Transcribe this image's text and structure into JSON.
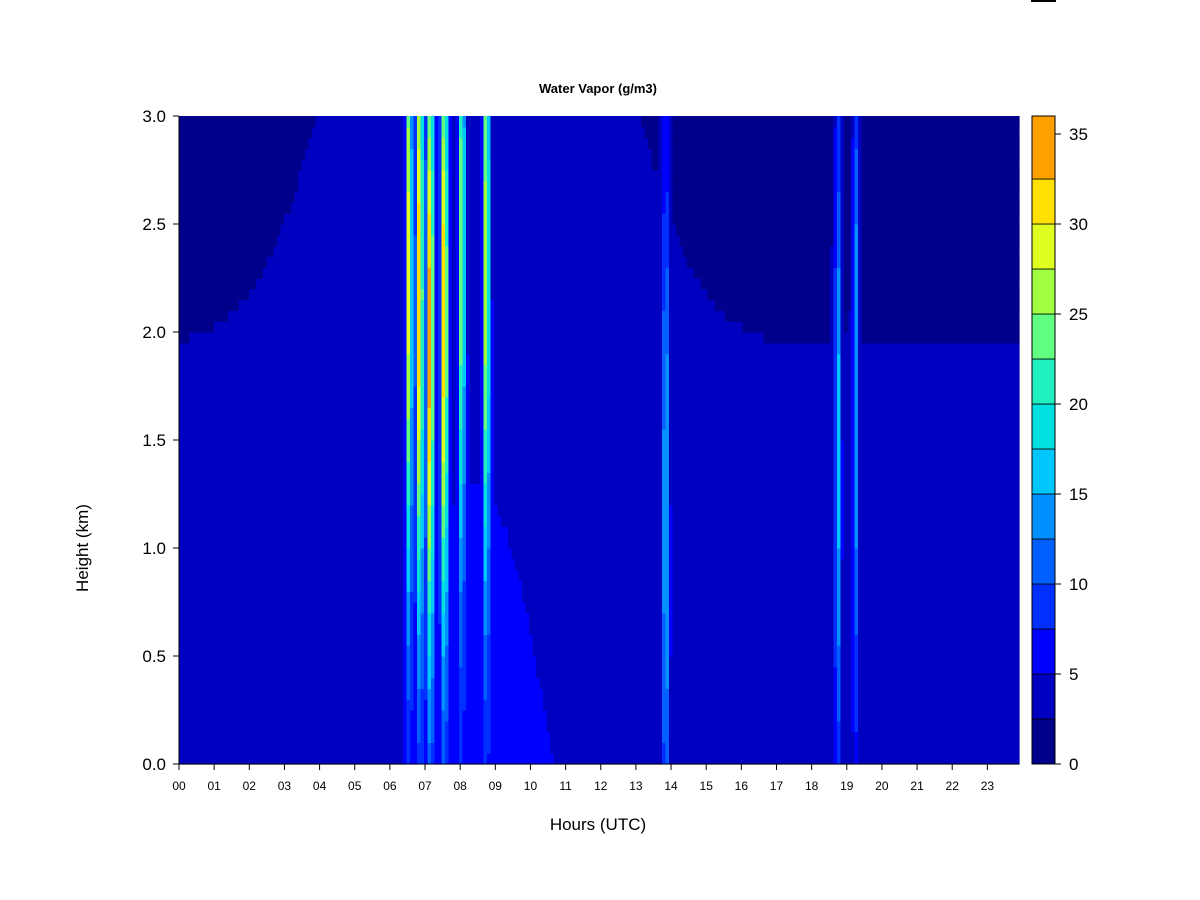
{
  "chart_data": {
    "type": "heatmap",
    "title": "Water Vapor (g/m3)",
    "xlabel": "Hours (UTC)",
    "ylabel": "Height (km)",
    "x_tick_labels": [
      "00",
      "01",
      "02",
      "03",
      "04",
      "05",
      "06",
      "07",
      "08",
      "09",
      "10",
      "11",
      "12",
      "13",
      "14",
      "15",
      "16",
      "17",
      "18",
      "19",
      "20",
      "21",
      "22",
      "23"
    ],
    "x_ticks": [
      0,
      1,
      2,
      3,
      4,
      5,
      6,
      7,
      8,
      9,
      10,
      11,
      12,
      13,
      14,
      15,
      16,
      17,
      18,
      19,
      20,
      21,
      22,
      23
    ],
    "xlim": [
      0,
      23.9
    ],
    "y_tick_labels": [
      "0.0",
      "0.5",
      "1.0",
      "1.5",
      "2.0",
      "2.5",
      "3.0"
    ],
    "y_ticks": [
      0,
      0.5,
      1.0,
      1.5,
      2.0,
      2.5,
      3.0
    ],
    "ylim": [
      0,
      3.0
    ],
    "colorbar": {
      "levels": [
        0,
        2.5,
        5,
        7.5,
        10,
        12.5,
        15,
        17.5,
        20,
        22.5,
        25,
        27.5,
        30,
        32.5,
        36
      ],
      "tick_values": [
        0,
        5,
        10,
        15,
        20,
        25,
        30,
        35
      ],
      "tick_labels": [
        "0",
        "5",
        "10",
        "15",
        "20",
        "25",
        "30",
        "35"
      ],
      "colors": [
        "#00008b",
        "#0000c0",
        "#0000ff",
        "#0030ff",
        "#0060ff",
        "#0090ff",
        "#00c8ff",
        "#00e0e0",
        "#20f0c0",
        "#60ff80",
        "#a0ff40",
        "#e0ff20",
        "#ffe000",
        "#ffa000",
        "#ff6000",
        "#ff2000",
        "#e00000",
        "#a00000",
        "#700000"
      ],
      "legend_position": "right"
    },
    "plumes": [
      {
        "center_hour": 6.55,
        "half_width_hours": 0.08,
        "peak_value": 28,
        "peak_height_km": 2.3
      },
      {
        "center_hour": 6.85,
        "half_width_hours": 0.1,
        "peak_value": 30,
        "peak_height_km": 2.2
      },
      {
        "center_hour": 7.15,
        "half_width_hours": 0.1,
        "peak_value": 32,
        "peak_height_km": 2.0
      },
      {
        "center_hour": 7.55,
        "half_width_hours": 0.1,
        "peak_value": 30,
        "peak_height_km": 2.1
      },
      {
        "center_hour": 8.05,
        "half_width_hours": 0.08,
        "peak_value": 24,
        "peak_height_km": 2.4
      },
      {
        "center_hour": 8.75,
        "half_width_hours": 0.08,
        "peak_value": 27,
        "peak_height_km": 2.3
      },
      {
        "center_hour": 13.85,
        "half_width_hours": 0.1,
        "peak_value": 14,
        "peak_height_km": 1.2
      },
      {
        "center_hour": 18.75,
        "half_width_hours": 0.09,
        "peak_value": 14,
        "peak_height_km": 1.5
      },
      {
        "center_hour": 19.25,
        "half_width_hours": 0.08,
        "peak_value": 13,
        "peak_height_km": 1.8
      }
    ],
    "grid": false
  }
}
